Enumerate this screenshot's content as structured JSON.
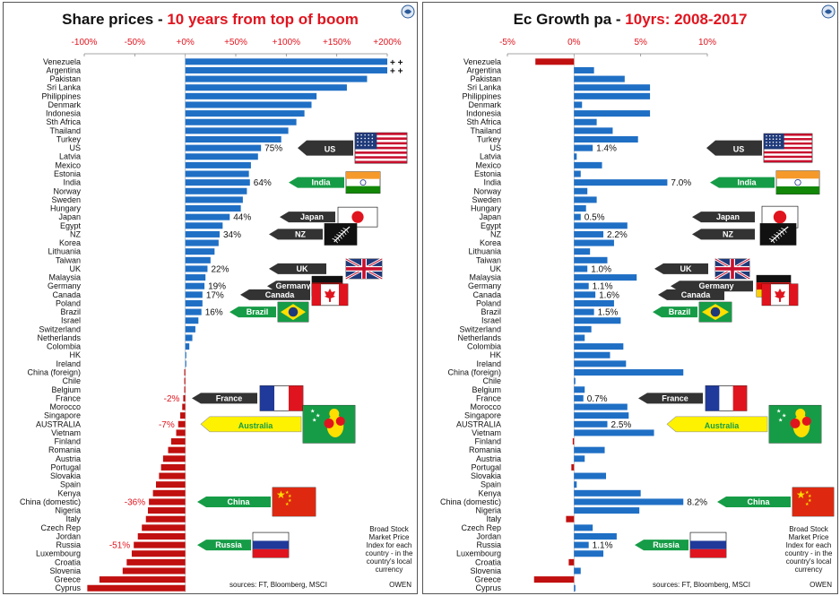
{
  "colors": {
    "positive": "#1f6fc5",
    "negative": "#c0100f",
    "accent_red": "#e0141e",
    "arrow_dark": "#333333",
    "arrow_green": "#169c46",
    "arrow_yellow": "#fff200"
  },
  "chart_data": [
    {
      "type": "bar",
      "orientation": "horizontal",
      "title_prefix": "Share prices - ",
      "title_highlight": "10 years from top of boom",
      "xlim": [
        -100,
        200
      ],
      "ticks": [
        -100,
        -50,
        0,
        50,
        100,
        150,
        200
      ],
      "tick_labels": [
        "-100%",
        "-50%",
        "+0%",
        "+50%",
        "+100%",
        "+150%",
        "+200%"
      ],
      "categories": [
        "Venezuela",
        "Argentina",
        "Pakistan",
        "Sri Lanka",
        "Philippines",
        "Denmark",
        "Indonesia",
        "Sth Africa",
        "Thailand",
        "Turkey",
        "US",
        "Latvia",
        "Mexico",
        "Estonia",
        "India",
        "Norway",
        "Sweden",
        "Hungary",
        "Japan",
        "Egypt",
        "NZ",
        "Korea",
        "Lithuania",
        "Taiwan",
        "UK",
        "Malaysia",
        "Germany",
        "Canada",
        "Poland",
        "Brazil",
        "Israel",
        "Switzerland",
        "Netherlands",
        "Colombia",
        "HK",
        "Ireland",
        "China (foreign)",
        "Chile",
        "Belgium",
        "France",
        "Morocco",
        "Singapore",
        "AUSTRALIA",
        "Vietnam",
        "Finland",
        "Romania",
        "Austria",
        "Portugal",
        "Slovakia",
        "Spain",
        "Kenya",
        "China (domestic)",
        "Nigeria",
        "Italy",
        "Czech Rep",
        "Jordan",
        "Russia",
        "Luxembourg",
        "Croatia",
        "Slovenia",
        "Greece",
        "Cyprus"
      ],
      "values": [
        200,
        200,
        180,
        160,
        130,
        125,
        118,
        110,
        102,
        95,
        75,
        72,
        65,
        63,
        64,
        61,
        57,
        55,
        44,
        37,
        34,
        33,
        29,
        25,
        22,
        20,
        19,
        17,
        17,
        16,
        13,
        10,
        7,
        4,
        1,
        1,
        -1,
        -1,
        -1,
        -2,
        -3,
        -5,
        -7,
        -9,
        -14,
        -17,
        -22,
        -24,
        -26,
        -29,
        -32,
        -36,
        -37,
        -39,
        -43,
        -47,
        -51,
        -53,
        -58,
        -62,
        -85,
        -97
      ],
      "off_scale_markers": [
        {
          "category": "Venezuela",
          "text": "+ +"
        },
        {
          "category": "Argentina",
          "text": "+ +"
        }
      ],
      "data_labels": [
        {
          "category": "US",
          "text": "75%"
        },
        {
          "category": "India",
          "text": "64%"
        },
        {
          "category": "Japan",
          "text": "44%"
        },
        {
          "category": "NZ",
          "text": "34%"
        },
        {
          "category": "UK",
          "text": "22%"
        },
        {
          "category": "Germany",
          "text": "19%"
        },
        {
          "category": "Canada",
          "text": "17%"
        },
        {
          "category": "Brazil",
          "text": "16%"
        },
        {
          "category": "France",
          "text": "-2%"
        },
        {
          "category": "AUSTRALIA",
          "text": "-7%"
        },
        {
          "category": "China (domestic)",
          "text": "-36%"
        },
        {
          "category": "Russia",
          "text": "-51%"
        }
      ],
      "callouts": [
        {
          "category": "US",
          "text": "US",
          "style": "dark",
          "flag": "us",
          "size": "large"
        },
        {
          "category": "India",
          "text": "India",
          "style": "green",
          "flag": "india"
        },
        {
          "category": "Japan",
          "text": "Japan",
          "style": "dark",
          "flag": "japan"
        },
        {
          "category": "NZ",
          "text": "NZ",
          "style": "dark",
          "flag": "nz"
        },
        {
          "category": "UK",
          "text": "UK",
          "style": "dark",
          "flag": "uk"
        },
        {
          "category": "Germany",
          "text": "Germany",
          "style": "dark",
          "flag": "germany"
        },
        {
          "category": "Canada",
          "text": "Canada",
          "style": "dark",
          "flag": "canada"
        },
        {
          "category": "Brazil",
          "text": "Brazil",
          "style": "green",
          "flag": "brazil"
        },
        {
          "category": "France",
          "text": "France",
          "style": "dark",
          "flag": "france"
        },
        {
          "category": "AUSTRALIA",
          "text": "Australia",
          "style": "yellow",
          "flag": "kangaroo"
        },
        {
          "category": "China (domestic)",
          "text": "China",
          "style": "green",
          "flag": "china"
        },
        {
          "category": "Russia",
          "text": "Russia",
          "style": "green",
          "flag": "russia"
        }
      ],
      "note": [
        "Broad Stock",
        "Market Price",
        "Index for each",
        "country - in the",
        "country's local",
        "currency"
      ],
      "sources": "sources: FT, Bloomberg, MSCI",
      "brand": "OWEN"
    },
    {
      "type": "bar",
      "orientation": "horizontal",
      "title_prefix": "Ec Growth pa - ",
      "title_highlight": "10yrs: 2008-2017",
      "xlim": [
        -5,
        10
      ],
      "ticks": [
        -5,
        0,
        5,
        10
      ],
      "tick_labels": [
        "-5%",
        "0%",
        "5%",
        "10%"
      ],
      "categories": [
        "Venezuela",
        "Argentina",
        "Pakistan",
        "Sri Lanka",
        "Philippines",
        "Denmark",
        "Indonesia",
        "Sth Africa",
        "Thailand",
        "Turkey",
        "US",
        "Latvia",
        "Mexico",
        "Estonia",
        "India",
        "Norway",
        "Sweden",
        "Hungary",
        "Japan",
        "Egypt",
        "NZ",
        "Korea",
        "Lithuania",
        "Taiwan",
        "UK",
        "Malaysia",
        "Germany",
        "Canada",
        "Poland",
        "Brazil",
        "Israel",
        "Switzerland",
        "Netherlands",
        "Colombia",
        "HK",
        "Ireland",
        "China (foreign)",
        "Chile",
        "Belgium",
        "France",
        "Morocco",
        "Singapore",
        "AUSTRALIA",
        "Vietnam",
        "Finland",
        "Romania",
        "Austria",
        "Portugal",
        "Slovakia",
        "Spain",
        "Kenya",
        "China (domestic)",
        "Nigeria",
        "Italy",
        "Czech Rep",
        "Jordan",
        "Russia",
        "Luxembourg",
        "Croatia",
        "Slovenia",
        "Greece",
        "Cyprus"
      ],
      "values": [
        -2.9,
        1.5,
        3.8,
        5.7,
        5.7,
        0.6,
        5.7,
        1.7,
        2.9,
        4.8,
        1.4,
        0.2,
        2.1,
        0.5,
        7.0,
        1.0,
        1.7,
        0.9,
        0.5,
        4.0,
        2.2,
        3.0,
        1.2,
        2.5,
        1.0,
        4.7,
        1.1,
        1.6,
        3.0,
        1.5,
        3.5,
        1.3,
        0.8,
        3.7,
        2.7,
        3.9,
        8.2,
        0.1,
        0.8,
        0.7,
        4.0,
        4.1,
        2.5,
        6.0,
        -0.1,
        2.3,
        0.8,
        -0.2,
        2.4,
        0.2,
        5.0,
        8.2,
        4.9,
        -0.6,
        1.4,
        3.2,
        1.1,
        2.2,
        -0.4,
        0.5,
        -3.0,
        0.1
      ],
      "data_labels": [
        {
          "category": "US",
          "text": "1.4%"
        },
        {
          "category": "India",
          "text": "7.0%"
        },
        {
          "category": "Japan",
          "text": "0.5%"
        },
        {
          "category": "NZ",
          "text": "2.2%"
        },
        {
          "category": "UK",
          "text": "1.0%"
        },
        {
          "category": "Germany",
          "text": "1.1%"
        },
        {
          "category": "Canada",
          "text": "1.6%"
        },
        {
          "category": "Brazil",
          "text": "1.5%"
        },
        {
          "category": "France",
          "text": "0.7%"
        },
        {
          "category": "AUSTRALIA",
          "text": "2.5%"
        },
        {
          "category": "China (domestic)",
          "text": "8.2%"
        },
        {
          "category": "Russia",
          "text": "1.1%"
        }
      ],
      "callouts": [
        {
          "category": "US",
          "text": "US",
          "style": "dark",
          "flag": "us",
          "size": "large"
        },
        {
          "category": "India",
          "text": "India",
          "style": "green",
          "flag": "india"
        },
        {
          "category": "Japan",
          "text": "Japan",
          "style": "dark",
          "flag": "japan"
        },
        {
          "category": "NZ",
          "text": "NZ",
          "style": "dark",
          "flag": "nz"
        },
        {
          "category": "UK",
          "text": "UK",
          "style": "dark",
          "flag": "uk"
        },
        {
          "category": "Germany",
          "text": "Germany",
          "style": "dark",
          "flag": "germany"
        },
        {
          "category": "Canada",
          "text": "Canada",
          "style": "dark",
          "flag": "canada"
        },
        {
          "category": "Brazil",
          "text": "Brazil",
          "style": "green",
          "flag": "brazil"
        },
        {
          "category": "France",
          "text": "France",
          "style": "dark",
          "flag": "france"
        },
        {
          "category": "AUSTRALIA",
          "text": "Australia",
          "style": "yellow",
          "flag": "kangaroo"
        },
        {
          "category": "China (domestic)",
          "text": "China",
          "style": "green",
          "flag": "china"
        },
        {
          "category": "Russia",
          "text": "Russia",
          "style": "green",
          "flag": "russia"
        }
      ],
      "note": [
        "Broad Stock",
        "Market Price",
        "Index for each",
        "country - in the",
        "country's local",
        "currency"
      ],
      "sources": "sources: FT, Bloomberg, MSCI",
      "brand": "OWEN"
    }
  ]
}
